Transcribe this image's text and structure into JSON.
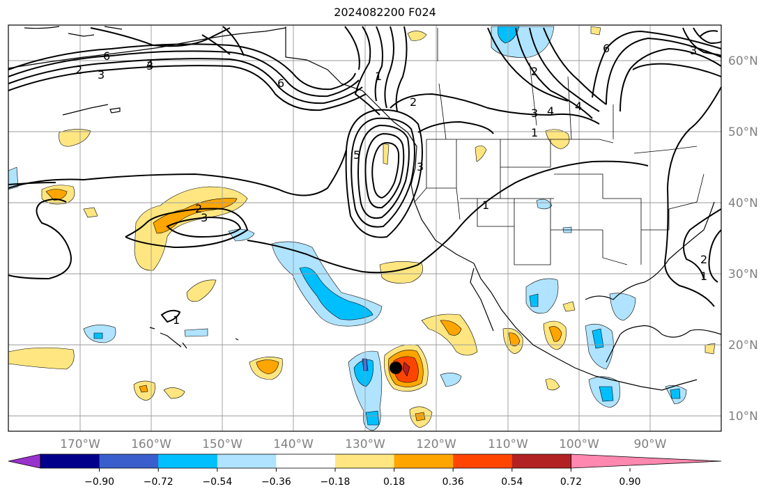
{
  "title": "2024082200 F024",
  "lon_labels": [
    "170°W",
    "160°W",
    "150°W",
    "140°W",
    "130°W",
    "120°W",
    "110°W",
    "100°W",
    "90°W"
  ],
  "lat_labels": [
    "60°N",
    "50°N",
    "40°N",
    "30°N",
    "20°N",
    "10°N"
  ],
  "colorbar": {
    "colors": [
      "#9932cc",
      "#00008b",
      "#3a5fcd",
      "#00bfff",
      "#afe3ff",
      "#ffffff",
      "#ffe680",
      "#ffa500",
      "#ff4500",
      "#b22222",
      "#ff88b0"
    ],
    "tick_labels": [
      "−0.90",
      "−0.72",
      "−0.54",
      "−0.36",
      "−0.18",
      "0.18",
      "0.36",
      "0.54",
      "0.72",
      "0.90"
    ]
  },
  "contour_labels": [
    "2",
    "3",
    "4",
    "6",
    "1",
    "2",
    "3",
    "4",
    "6",
    "2",
    "3",
    "1",
    "2",
    "1",
    "3",
    "6",
    "2",
    "3",
    "5",
    "1",
    "3",
    "4",
    "1"
  ],
  "storm_marker": "storm-center"
}
